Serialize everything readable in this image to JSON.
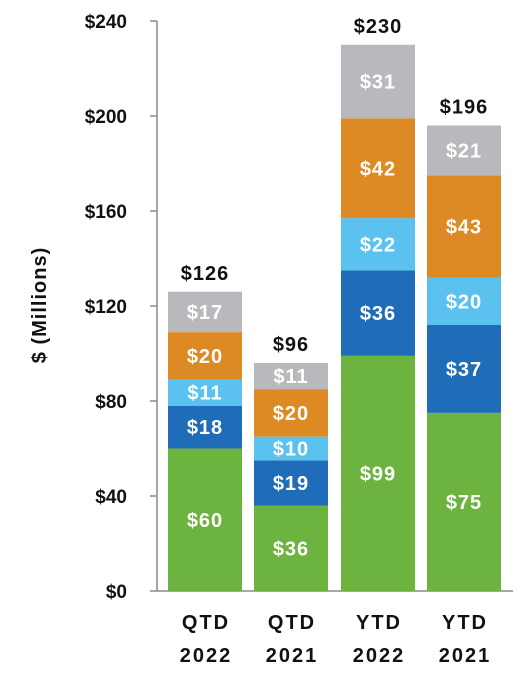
{
  "chart_data": {
    "type": "bar",
    "stacked": true,
    "categories": [
      [
        "QTD",
        "2022"
      ],
      [
        "QTD",
        "2021"
      ],
      [
        "YTD",
        "2022"
      ],
      [
        "YTD",
        "2021"
      ]
    ],
    "ylabel": "$ (Millions)",
    "ylim": [
      0,
      240
    ],
    "yticks": [
      0,
      40,
      80,
      120,
      160,
      200,
      240
    ],
    "ytick_labels": [
      "$0",
      "$40",
      "$80",
      "$120",
      "$160",
      "$200",
      "$240"
    ],
    "grid": false,
    "legend": "none",
    "totals": [
      126,
      96,
      230,
      196
    ],
    "total_labels": [
      "$126",
      "$96",
      "$230",
      "$196"
    ],
    "series": [
      {
        "color": "#6db33f",
        "values": [
          60,
          36,
          99,
          75
        ],
        "labels": [
          "$60",
          "$36",
          "$99",
          "$75"
        ]
      },
      {
        "color": "#1f6db8",
        "values": [
          18,
          19,
          36,
          37
        ],
        "labels": [
          "$18",
          "$19",
          "$36",
          "$37"
        ]
      },
      {
        "color": "#5bc2ef",
        "values": [
          11,
          10,
          22,
          20
        ],
        "labels": [
          "$11",
          "$10",
          "$22",
          "$20"
        ]
      },
      {
        "color": "#de8a24",
        "values": [
          20,
          20,
          42,
          43
        ],
        "labels": [
          "$20",
          "$20",
          "$42",
          "$43"
        ]
      },
      {
        "color": "#b7b9bc",
        "values": [
          17,
          11,
          31,
          21
        ],
        "labels": [
          "$17",
          "$11",
          "$31",
          "$21"
        ]
      }
    ]
  }
}
